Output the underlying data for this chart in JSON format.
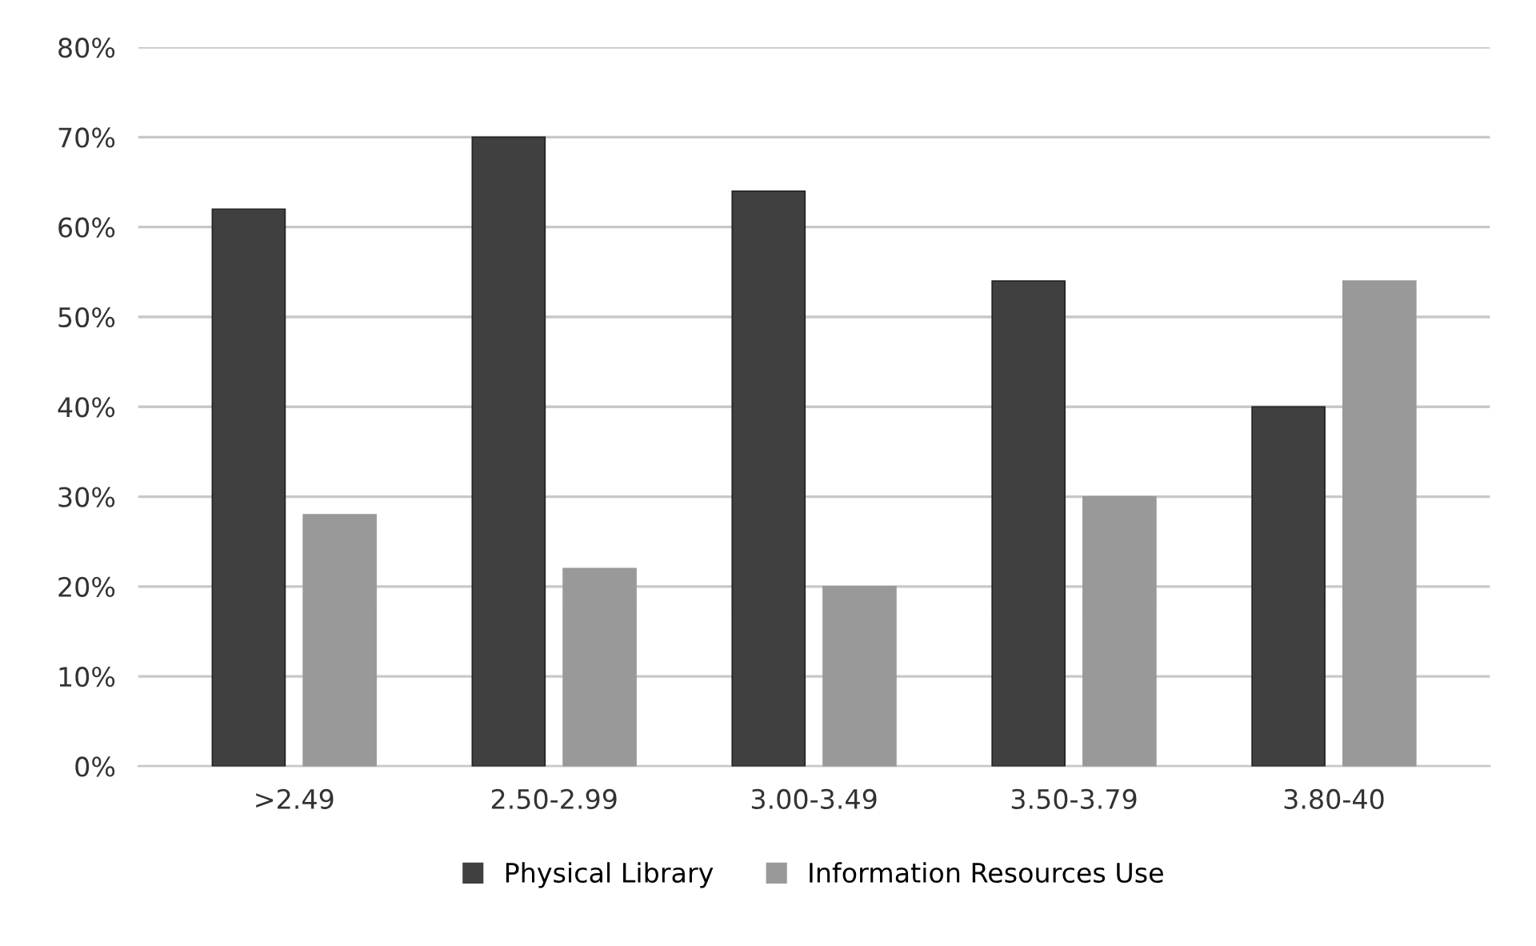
{
  "chart_data": {
    "type": "bar",
    "categories": [
      ">2.49",
      "2.50-2.99",
      "3.00-3.49",
      "3.50-3.79",
      "3.80-40"
    ],
    "series": [
      {
        "name": "Physical Library",
        "color": "#404040",
        "values": [
          62,
          70,
          64,
          54,
          40
        ]
      },
      {
        "name": "Information Resources Use",
        "color": "#999999",
        "values": [
          28,
          22,
          20,
          30,
          54
        ]
      }
    ],
    "ylim": [
      0,
      80
    ],
    "yticks": [
      {
        "value": 0,
        "label": "0%"
      },
      {
        "value": 10,
        "label": "10%"
      },
      {
        "value": 20,
        "label": "20%"
      },
      {
        "value": 30,
        "label": "30%"
      },
      {
        "value": 40,
        "label": "40%"
      },
      {
        "value": 50,
        "label": "50%"
      },
      {
        "value": 60,
        "label": "60%"
      },
      {
        "value": 70,
        "label": "70%"
      },
      {
        "value": 80,
        "label": "80%"
      }
    ],
    "grid": "y",
    "legend": "bottom"
  }
}
